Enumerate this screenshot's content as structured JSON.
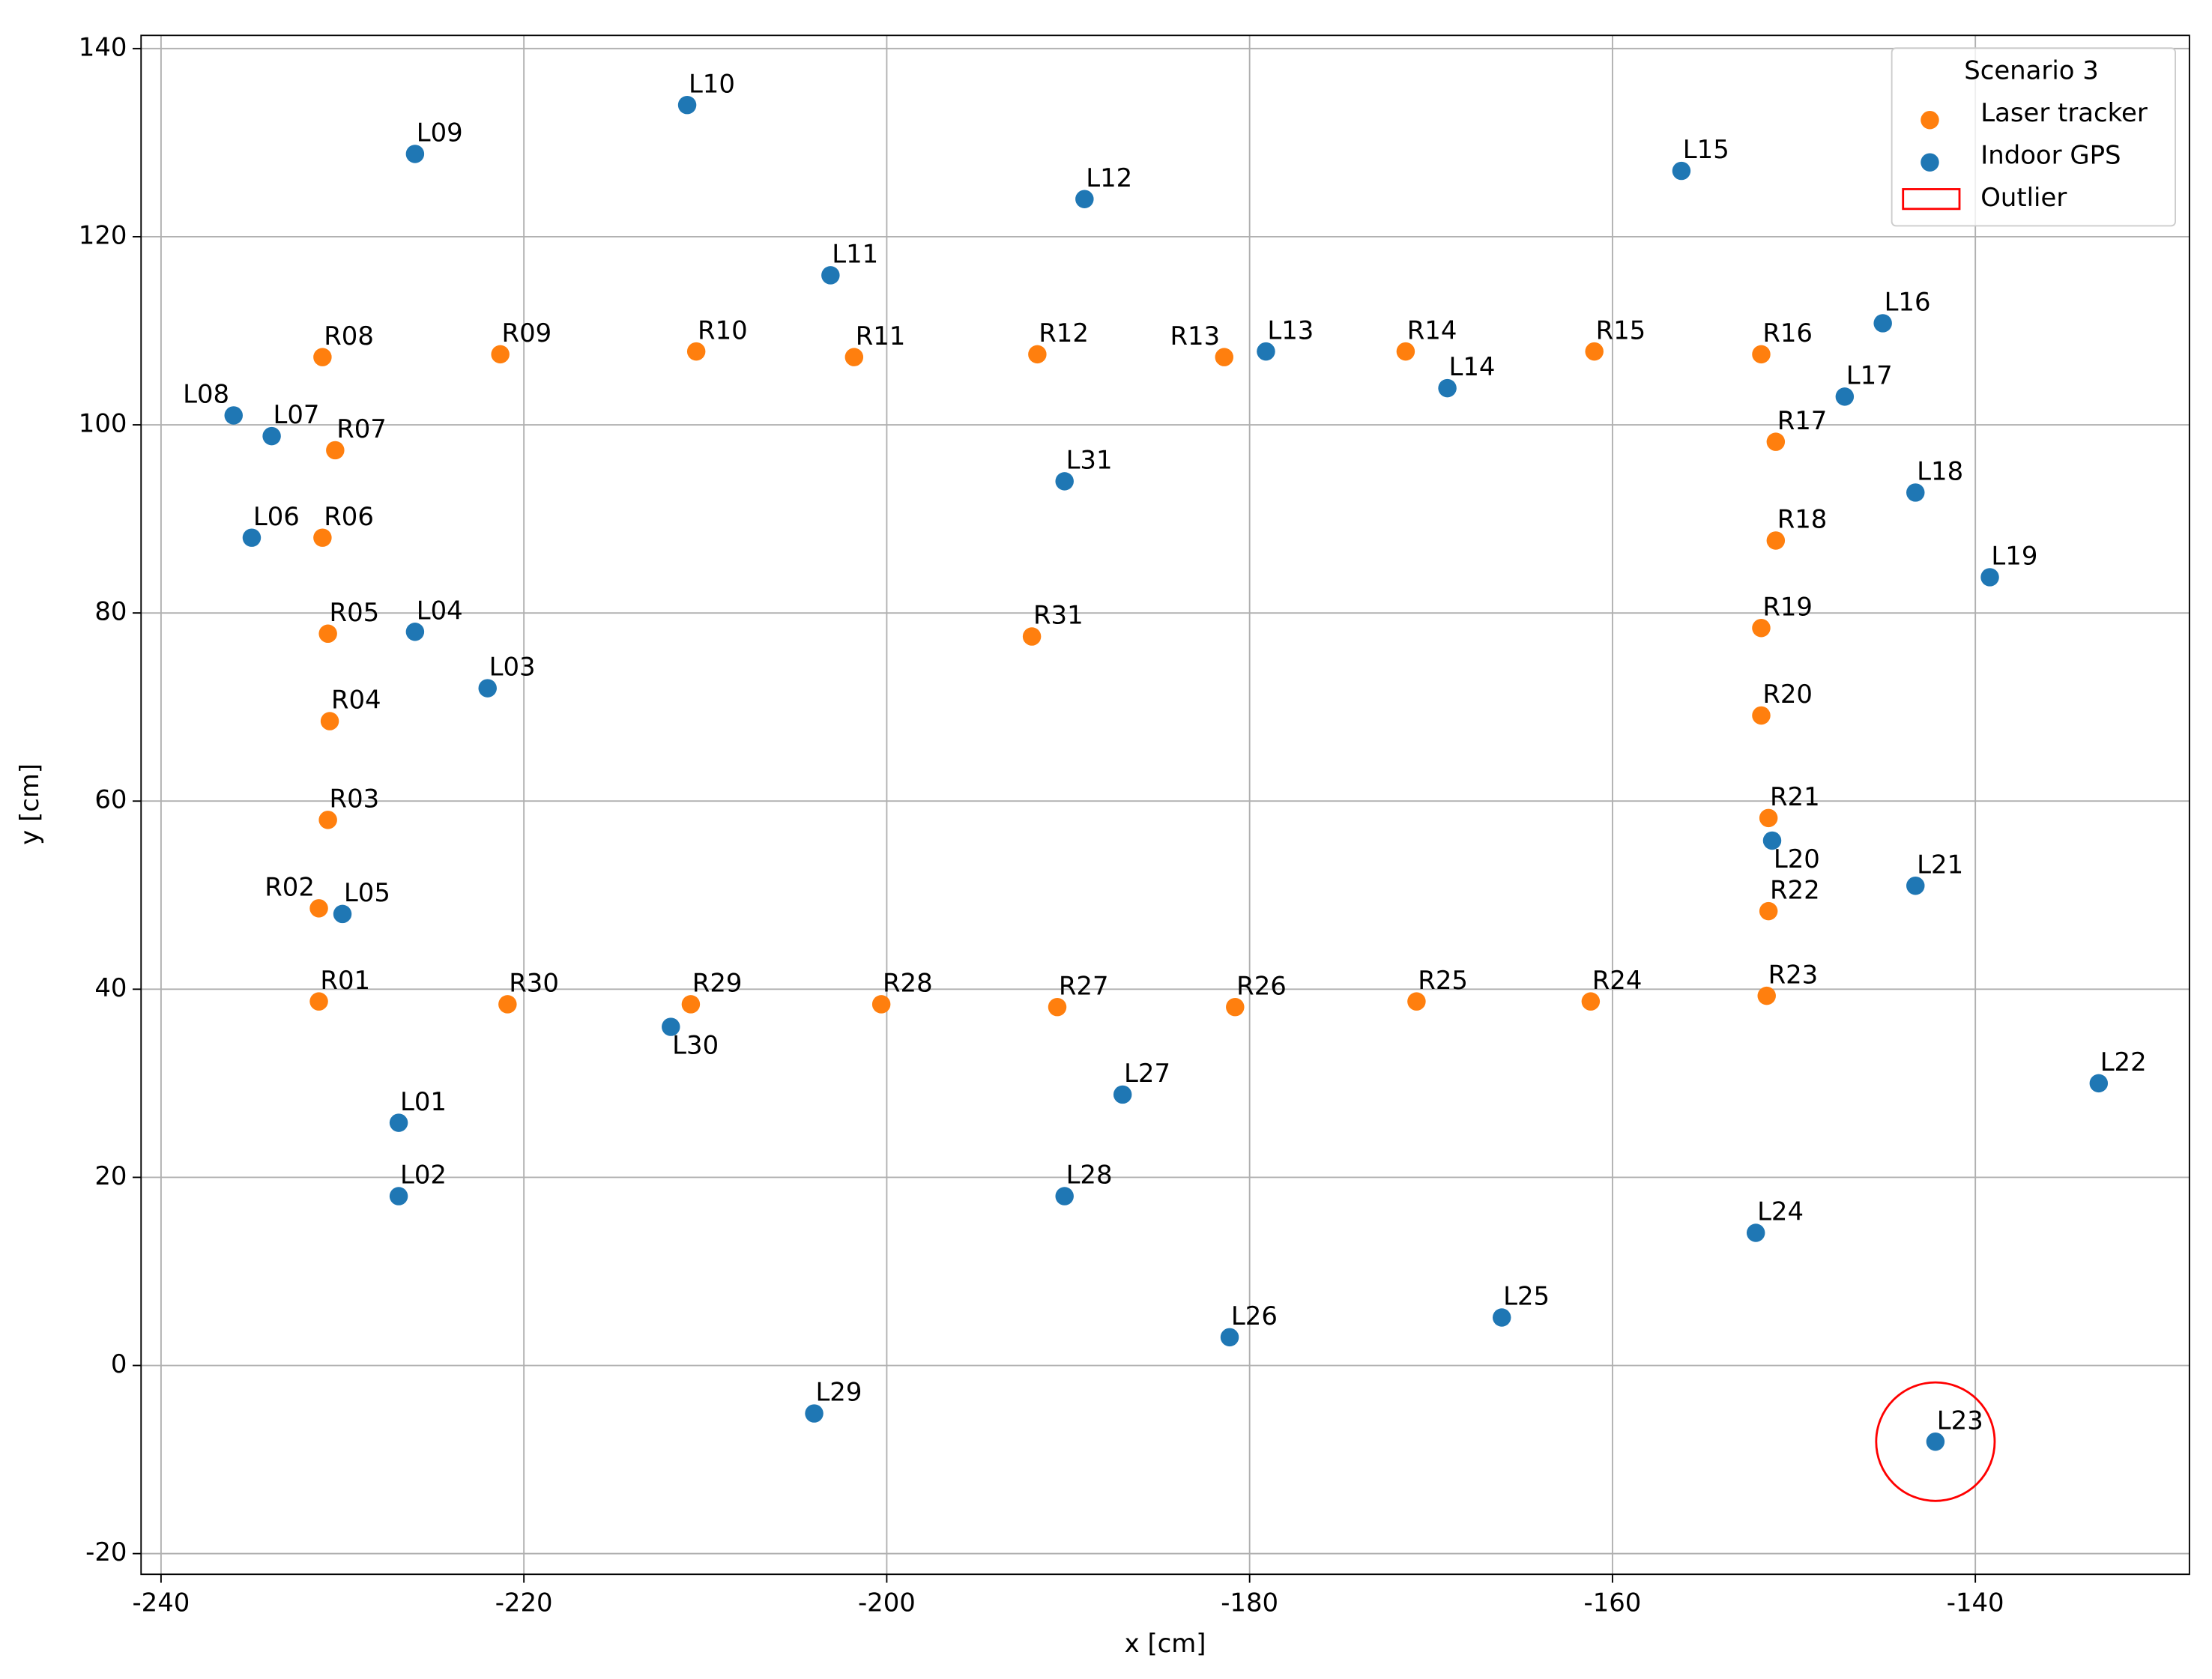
{
  "chart_data": {
    "type": "scatter",
    "xlabel": "x [cm]",
    "ylabel": "y [cm]",
    "xlim": [
      -241.1,
      -128.2
    ],
    "ylim": [
      -22.2,
      141.4
    ],
    "xticks": [
      -240,
      -220,
      -200,
      -180,
      -160,
      -140
    ],
    "yticks": [
      -20,
      0,
      20,
      40,
      60,
      80,
      100,
      120,
      140
    ],
    "grid": true,
    "legend_title": "Scenario 3",
    "legend": "upper right",
    "series": [
      {
        "name": "Laser tracker",
        "color": "#ff7f0e",
        "labels": [
          "R01",
          "R02",
          "R03",
          "R04",
          "R05",
          "R06",
          "R07",
          "R08",
          "R09",
          "R10",
          "R11",
          "R12",
          "R13",
          "R14",
          "R15",
          "R16",
          "R17",
          "R18",
          "R19",
          "R20",
          "R21",
          "R22",
          "R23",
          "R24",
          "R25",
          "R26",
          "R27",
          "R28",
          "R29",
          "R30",
          "R31"
        ],
        "x": [
          -231.3,
          -231.3,
          -230.8,
          -230.7,
          -230.8,
          -231.1,
          -230.4,
          -231.1,
          -221.3,
          -210.5,
          -201.8,
          -191.7,
          -181.4,
          -171.4,
          -161.0,
          -151.8,
          -151.0,
          -151.0,
          -151.8,
          -151.8,
          -151.4,
          -151.4,
          -151.5,
          -161.2,
          -170.8,
          -180.8,
          -190.6,
          -200.3,
          -210.8,
          -220.9,
          -192.0
        ],
        "values": [
          38.7,
          48.6,
          58.0,
          68.5,
          77.8,
          88.0,
          97.3,
          107.2,
          107.5,
          107.8,
          107.2,
          107.5,
          107.2,
          107.8,
          107.8,
          107.5,
          98.2,
          87.7,
          78.4,
          69.1,
          58.2,
          48.3,
          39.3,
          38.7,
          38.7,
          38.1,
          38.1,
          38.4,
          38.4,
          38.4,
          77.5
        ]
      },
      {
        "name": "Indoor GPS",
        "color": "#1f77b4",
        "labels": [
          "L01",
          "L02",
          "L03",
          "L04",
          "L05",
          "L06",
          "L07",
          "L08",
          "L09",
          "L10",
          "L11",
          "L12",
          "L13",
          "L14",
          "L15",
          "L16",
          "L17",
          "L18",
          "L19",
          "L20",
          "L21",
          "L22",
          "L23",
          "L24",
          "L25",
          "L26",
          "L27",
          "L28",
          "L29",
          "L30",
          "L31"
        ],
        "x": [
          -226.9,
          -226.9,
          -222.0,
          -226.0,
          -230.0,
          -235.0,
          -233.9,
          -236.0,
          -226.0,
          -211.0,
          -203.1,
          -189.1,
          -179.1,
          -169.1,
          -156.2,
          -145.1,
          -147.2,
          -143.3,
          -139.2,
          -151.2,
          -143.3,
          -133.2,
          -142.2,
          -152.1,
          -166.1,
          -181.1,
          -187.0,
          -190.2,
          -204.0,
          -211.9,
          -190.2
        ],
        "values": [
          25.8,
          18.0,
          72.0,
          78.0,
          48.0,
          88.0,
          98.8,
          101.0,
          128.8,
          134.0,
          115.9,
          124.0,
          107.8,
          103.9,
          127.0,
          110.8,
          103.0,
          92.8,
          83.8,
          55.8,
          51.0,
          30.0,
          -8.1,
          14.1,
          5.1,
          3.0,
          28.8,
          18.0,
          -5.1,
          36.0,
          94.0
        ]
      }
    ],
    "outlier": {
      "name": "Outlier",
      "color": "red",
      "x": -142.2,
      "y": -8.1
    }
  }
}
